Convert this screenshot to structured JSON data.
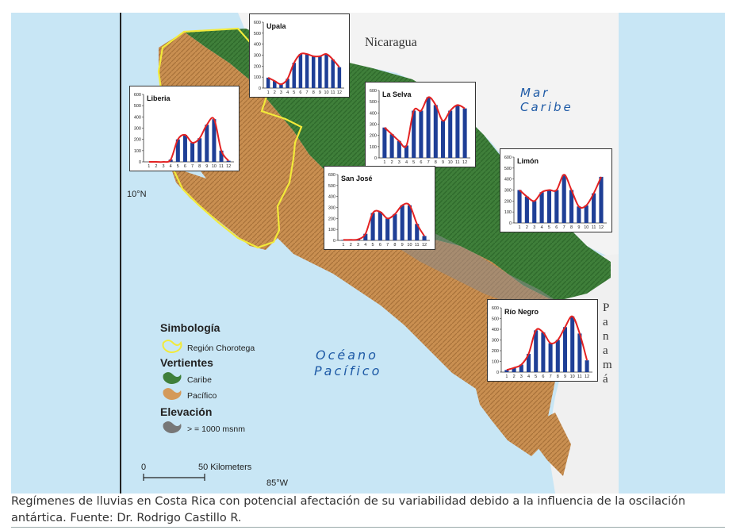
{
  "map": {
    "labels": {
      "nicaragua": "Nicaragua",
      "mar": "Mar",
      "caribe_sea": "Caribe",
      "oceano": "Océano",
      "pacifico_ocean": "Pacífico",
      "panama_letters": [
        "P",
        "a",
        "n",
        "a",
        "m",
        "á"
      ],
      "lat": "10°N",
      "lon": "85°W"
    },
    "legend": {
      "symbology_title": "Simbología",
      "region_label": "Región Chorotega",
      "slopes_title": "Vertientes",
      "caribe_label": "Caribe",
      "pacifico_label": "Pacífico",
      "elevation_title": "Elevación",
      "elevation_label": "> = 1000 msnm"
    },
    "scale": {
      "start": "0",
      "end_label": "50 Kilometers"
    },
    "colors": {
      "sea": "#c8e6f5",
      "caribe": "#3f7f3a",
      "pacifico": "#d49a5a",
      "mountain": "#9c9c9c",
      "region": "#f2ea3a",
      "text_blue": "#1e5aa6"
    }
  },
  "chart_data": [
    {
      "type": "bar",
      "title": "Upala",
      "categories": [
        "1",
        "2",
        "3",
        "4",
        "5",
        "6",
        "7",
        "8",
        "9",
        "10",
        "11",
        "12"
      ],
      "values": [
        95,
        65,
        35,
        85,
        230,
        310,
        310,
        290,
        290,
        310,
        260,
        190
      ],
      "ylim": [
        0,
        600
      ],
      "yticks": [
        "0",
        "100",
        "200",
        "300",
        "400",
        "500",
        "600"
      ]
    },
    {
      "type": "bar",
      "title": "Liberia",
      "categories": [
        "1",
        "2",
        "3",
        "4",
        "5",
        "6",
        "7",
        "8",
        "9",
        "10",
        "11",
        "12"
      ],
      "values": [
        0,
        0,
        0,
        20,
        200,
        240,
        170,
        210,
        330,
        380,
        100,
        10
      ],
      "ylim": [
        0,
        600
      ],
      "yticks": [
        "0",
        "100",
        "200",
        "300",
        "400",
        "500",
        "600"
      ]
    },
    {
      "type": "bar",
      "title": "La Selva",
      "categories": [
        "1",
        "2",
        "3",
        "4",
        "5",
        "6",
        "7",
        "8",
        "9",
        "10",
        "11",
        "12"
      ],
      "values": [
        270,
        210,
        150,
        110,
        420,
        420,
        540,
        470,
        330,
        420,
        470,
        440
      ],
      "ylim": [
        0,
        600
      ],
      "yticks": [
        "0",
        "100",
        "200",
        "300",
        "400",
        "500",
        "600"
      ]
    },
    {
      "type": "bar",
      "title": "Limón",
      "categories": [
        "1",
        "2",
        "3",
        "4",
        "5",
        "6",
        "7",
        "8",
        "9",
        "10",
        "11",
        "12"
      ],
      "values": [
        300,
        240,
        200,
        280,
        300,
        300,
        440,
        300,
        150,
        160,
        270,
        420
      ],
      "ylim": [
        0,
        600
      ],
      "yticks": [
        "0",
        "100",
        "200",
        "300",
        "400",
        "500",
        "600"
      ]
    },
    {
      "type": "bar",
      "title": "San José",
      "categories": [
        "1",
        "2",
        "3",
        "4",
        "5",
        "6",
        "7",
        "8",
        "9",
        "10",
        "11",
        "12"
      ],
      "values": [
        5,
        5,
        10,
        60,
        250,
        260,
        200,
        240,
        320,
        320,
        150,
        40
      ],
      "ylim": [
        0,
        600
      ],
      "yticks": [
        "0",
        "100",
        "200",
        "300",
        "400",
        "500",
        "600"
      ]
    },
    {
      "type": "bar",
      "title": "Río Negro",
      "categories": [
        "1",
        "2",
        "3",
        "4",
        "5",
        "6",
        "7",
        "8",
        "9",
        "10",
        "11",
        "12"
      ],
      "values": [
        20,
        40,
        70,
        170,
        390,
        370,
        270,
        300,
        420,
        520,
        360,
        110
      ],
      "ylim": [
        0,
        600
      ],
      "yticks": [
        "0",
        "100",
        "200",
        "300",
        "400",
        "500",
        "600"
      ]
    }
  ],
  "caption": "Regímenes de lluvias en Costa Rica con potencial afectación de su variabilidad debido a la influencia de la oscilación antártica. Fuente: Dr. Rodrigo Castillo R."
}
